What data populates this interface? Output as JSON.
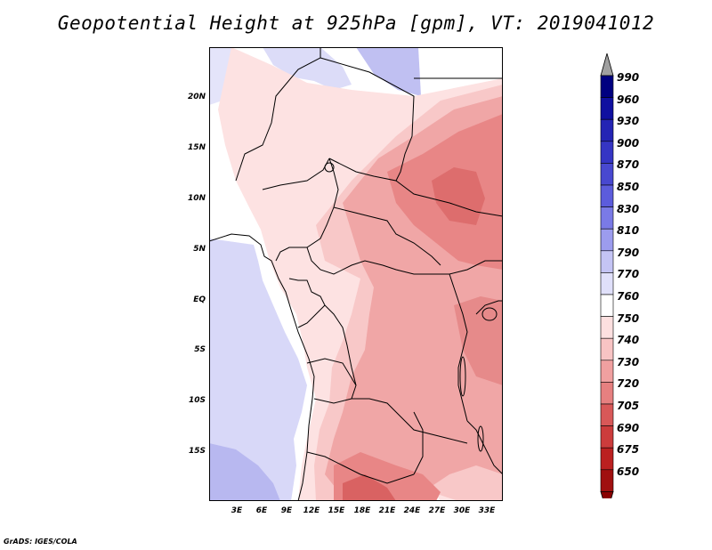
{
  "title": "Geopotential Height at 925hPa [gpm], VT: 2019041012",
  "credit": "GrADS: IGES/COLA",
  "lat_labels": [
    "20N",
    "15N",
    "10N",
    "5N",
    "EQ",
    "5S",
    "10S",
    "15S"
  ],
  "lon_labels": [
    "3E",
    "6E",
    "9E",
    "12E",
    "15E",
    "18E",
    "21E",
    "24E",
    "27E",
    "30E",
    "33E"
  ],
  "colorbar": {
    "labels": [
      "990",
      "960",
      "930",
      "900",
      "870",
      "850",
      "830",
      "810",
      "790",
      "770",
      "760",
      "750",
      "740",
      "730",
      "720",
      "705",
      "690",
      "675",
      "650"
    ],
    "colors": [
      "#000080",
      "#1010a0",
      "#2424b4",
      "#3535c4",
      "#4848d0",
      "#5c5cdc",
      "#7a7ae6",
      "#9c9cee",
      "#c4c4f4",
      "#e0e0fa",
      "#ffffff",
      "#fde0e0",
      "#f8c4c4",
      "#f0a0a0",
      "#e68080",
      "#d85858",
      "#cc3c3c",
      "#bb2020",
      "#a01010"
    ]
  }
}
